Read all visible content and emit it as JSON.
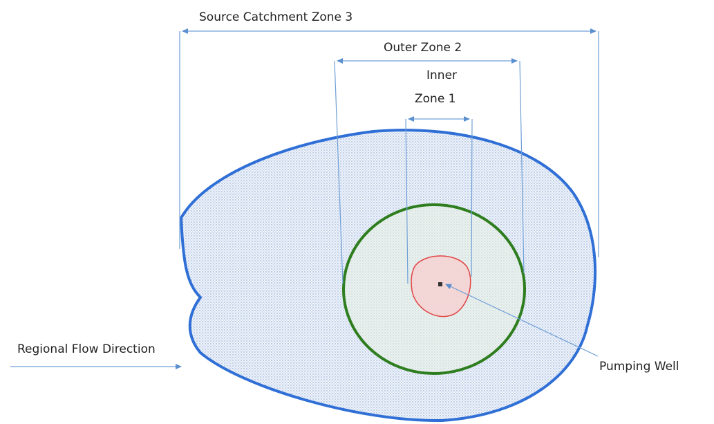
{
  "labels": {
    "zone3": "Source Catchment Zone 3",
    "zone2": "Outer Zone 2",
    "zone1_line1": "Inner",
    "zone1_line2": "Zone 1",
    "flow": "Regional Flow Direction",
    "well": "Pumping Well"
  }
}
